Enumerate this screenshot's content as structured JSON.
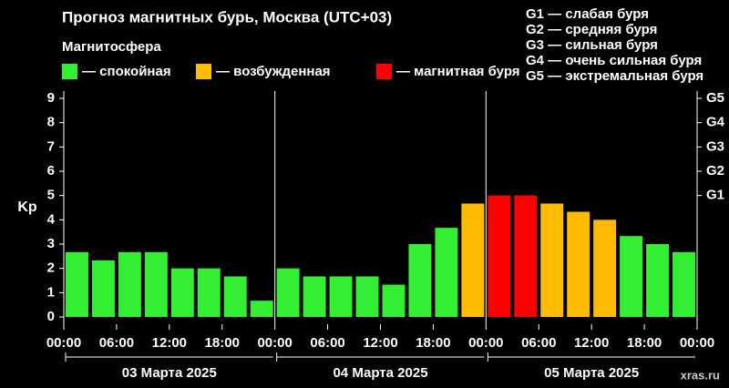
{
  "chart_data": {
    "type": "bar",
    "title": "Прогноз магнитных бурь, Москва (UTC+03)",
    "legend_title": "Магнитосфера",
    "legend": [
      {
        "name": "— спокойная",
        "color": "#33ee33"
      },
      {
        "name": "— возбужденная",
        "color": "#ffbb00"
      },
      {
        "name": "— магнитная буря",
        "color": "#ff0000"
      }
    ],
    "storm_levels": [
      "G1 — слабая буря",
      "G2 — средняя буря",
      "G3 — сильная буря",
      "G4 — очень сильная буря",
      "G5 — экстремальная буря"
    ],
    "ylabel": "Kp",
    "x": [
      0,
      3,
      6,
      9,
      12,
      15,
      18,
      21,
      24,
      27,
      30,
      33,
      36,
      39,
      42,
      45,
      48,
      51,
      54,
      57,
      60,
      63,
      66,
      69
    ],
    "values": [
      2.67,
      2.33,
      2.67,
      2.67,
      2,
      2,
      1.67,
      0.67,
      2,
      1.67,
      1.67,
      1.67,
      1.33,
      3,
      3.67,
      4.67,
      5,
      5,
      4.67,
      4.33,
      4,
      3.33,
      3,
      2.67
    ],
    "colors": [
      "#33ee33",
      "#33ee33",
      "#33ee33",
      "#33ee33",
      "#33ee33",
      "#33ee33",
      "#33ee33",
      "#33ee33",
      "#33ee33",
      "#33ee33",
      "#33ee33",
      "#33ee33",
      "#33ee33",
      "#33ee33",
      "#33ee33",
      "#ffbb00",
      "#ff0000",
      "#ff0000",
      "#ffbb00",
      "#ffbb00",
      "#ffbb00",
      "#33ee33",
      "#33ee33",
      "#33ee33"
    ],
    "bar_width": 3,
    "xlim": [
      0,
      72
    ],
    "xticks": [
      {
        "value": 0,
        "label": "00:00"
      },
      {
        "value": 6,
        "label": "06:00"
      },
      {
        "value": 12,
        "label": "12:00"
      },
      {
        "value": 18,
        "label": "18:00"
      },
      {
        "value": 24,
        "label": "00:00"
      },
      {
        "value": 30,
        "label": "06:00"
      },
      {
        "value": 36,
        "label": "12:00"
      },
      {
        "value": 42,
        "label": "18:00"
      },
      {
        "value": 48,
        "label": "00:00"
      },
      {
        "value": 54,
        "label": "06:00"
      },
      {
        "value": 60,
        "label": "12:00"
      },
      {
        "value": 66,
        "label": "18:00"
      },
      {
        "value": 72,
        "label": "00:00"
      }
    ],
    "day_boundaries": [
      24,
      48
    ],
    "days": [
      "03 Марта 2025",
      "04 Марта 2025",
      "05 Марта 2025"
    ],
    "ylim": [
      0,
      9
    ],
    "yticks": [
      0,
      1,
      2,
      3,
      4,
      5,
      6,
      7,
      8,
      9
    ],
    "y2lim": [
      0,
      9
    ],
    "y2ticks": [
      {
        "value": 5,
        "label": "G1"
      },
      {
        "value": 6,
        "label": "G2"
      },
      {
        "value": 7,
        "label": "G3"
      },
      {
        "value": 8,
        "label": "G4"
      },
      {
        "value": 9,
        "label": "G5"
      }
    ],
    "source": "xras.ru"
  }
}
